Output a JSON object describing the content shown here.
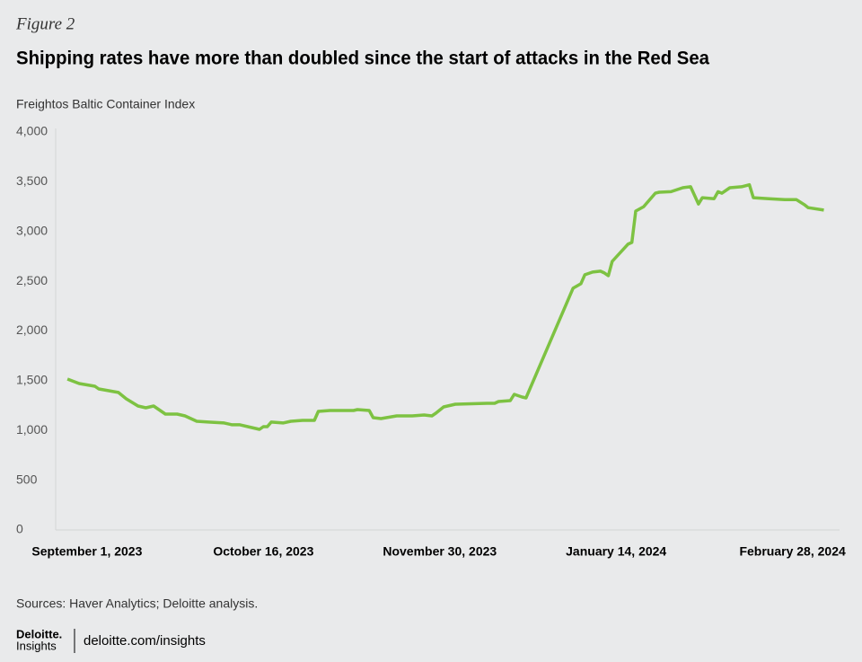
{
  "figure_label": "Figure 2",
  "chart_data": {
    "type": "line",
    "title": "Shipping rates have more than doubled since the start of attacks in the Red Sea",
    "y_label": "Freightos Baltic Container Index",
    "x": [
      "2023-08-27",
      "2023-08-30",
      "2023-09-03",
      "2023-09-04",
      "2023-09-08",
      "2023-09-09",
      "2023-09-11",
      "2023-09-14",
      "2023-09-16",
      "2023-09-18",
      "2023-09-21",
      "2023-09-24",
      "2023-09-26",
      "2023-09-29",
      "2023-10-02",
      "2023-10-06",
      "2023-10-08",
      "2023-10-10",
      "2023-10-13",
      "2023-10-15",
      "2023-10-16",
      "2023-10-17",
      "2023-10-18",
      "2023-10-21",
      "2023-10-23",
      "2023-10-26",
      "2023-10-29",
      "2023-10-30",
      "2023-11-02",
      "2023-11-08",
      "2023-11-09",
      "2023-11-12",
      "2023-11-13",
      "2023-11-15",
      "2023-11-19",
      "2023-11-23",
      "2023-11-26",
      "2023-11-28",
      "2023-11-29",
      "2023-12-01",
      "2023-12-04",
      "2023-12-12",
      "2023-12-14",
      "2023-12-15",
      "2023-12-18",
      "2023-12-19",
      "2023-12-21",
      "2023-12-22",
      "2024-01-03",
      "2024-01-05",
      "2024-01-06",
      "2024-01-08",
      "2024-01-10",
      "2024-01-11",
      "2024-01-12",
      "2024-01-13",
      "2024-01-17",
      "2024-01-18",
      "2024-01-19",
      "2024-01-21",
      "2024-01-24",
      "2024-01-25",
      "2024-01-28",
      "2024-01-31",
      "2024-02-02",
      "2024-02-04",
      "2024-02-05",
      "2024-02-08",
      "2024-02-09",
      "2024-02-10",
      "2024-02-12",
      "2024-02-15",
      "2024-02-17",
      "2024-02-18",
      "2024-02-22",
      "2024-02-26",
      "2024-02-29",
      "2024-03-02",
      "2024-03-03",
      "2024-03-07"
    ],
    "values": [
      1517,
      1472,
      1445,
      1418,
      1390,
      1382,
      1318,
      1246,
      1228,
      1246,
      1165,
      1165,
      1147,
      1093,
      1084,
      1075,
      1057,
      1057,
      1029,
      1011,
      1038,
      1038,
      1084,
      1075,
      1093,
      1102,
      1102,
      1192,
      1201,
      1201,
      1210,
      1201,
      1129,
      1120,
      1147,
      1147,
      1156,
      1147,
      1174,
      1237,
      1264,
      1273,
      1273,
      1291,
      1300,
      1363,
      1336,
      1327,
      2430,
      2475,
      2565,
      2592,
      2601,
      2583,
      2556,
      2700,
      2872,
      2890,
      3205,
      3250,
      3385,
      3395,
      3400,
      3440,
      3450,
      3277,
      3340,
      3330,
      3400,
      3385,
      3440,
      3450,
      3470,
      3340,
      3330,
      3320,
      3320,
      3270,
      3240,
      3215
    ],
    "color": "#7dc242",
    "xlim": [
      "2023-08-24",
      "2024-03-11"
    ],
    "xticks": [
      {
        "value": "2023-09-01",
        "label": "September 1, 2023"
      },
      {
        "value": "2023-10-16",
        "label": "October 16, 2023"
      },
      {
        "value": "2023-11-30",
        "label": "November 30, 2023"
      },
      {
        "value": "2024-01-14",
        "label": "January 14, 2024"
      },
      {
        "value": "2024-02-28",
        "label": "February 28, 2024"
      }
    ],
    "ylim": [
      0,
      4000
    ],
    "yticks": [
      0,
      500,
      {
        "value": 1000,
        "label": "1,000"
      },
      {
        "value": 1500,
        "label": "1,500"
      },
      {
        "value": 2000,
        "label": "2,000"
      },
      {
        "value": 2500,
        "label": "2,500"
      },
      {
        "value": 3000,
        "label": "3,000"
      },
      {
        "value": 3500,
        "label": "3,500"
      },
      {
        "value": 4000,
        "label": "4,000"
      }
    ],
    "grid": false,
    "source": "Sources: Haver Analytics; Deloitte analysis."
  },
  "footer": {
    "brand": "Deloitte.",
    "brand_sub": "Insights",
    "url": "deloitte.com/insights"
  }
}
